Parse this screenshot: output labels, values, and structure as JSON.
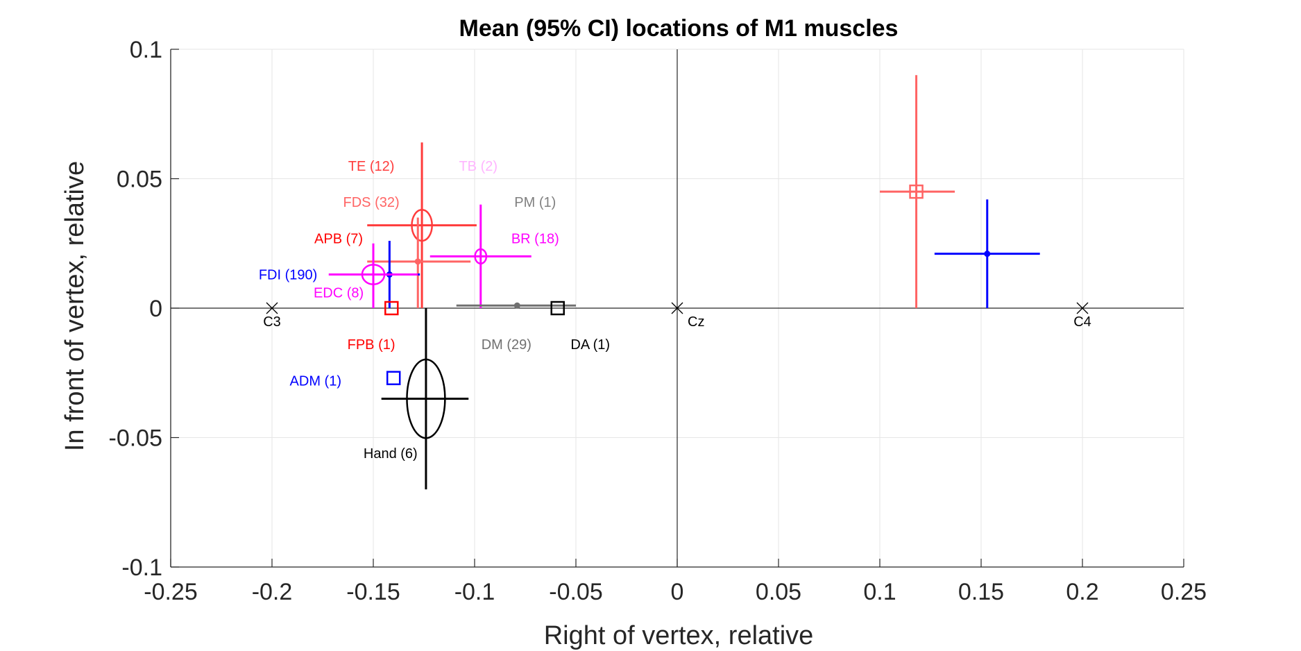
{
  "chart_data": {
    "type": "scatter",
    "title": "Mean (95% CI) locations of M1 muscles",
    "xlabel": "Right of vertex, relative",
    "ylabel": "In front of vertex, relative",
    "xlim": [
      -0.25,
      0.25
    ],
    "ylim": [
      -0.1,
      0.1
    ],
    "x_ticks": [
      "-0.25",
      "-0.2",
      "-0.15",
      "-0.1",
      "-0.05",
      "0",
      "0.05",
      "0.1",
      "0.15",
      "0.2",
      "0.25"
    ],
    "y_ticks": [
      "0.1",
      "0.05",
      "0",
      "-0.05",
      "-0.1"
    ],
    "x_tick_values": [
      -0.25,
      -0.2,
      -0.15,
      -0.1,
      -0.05,
      0,
      0.05,
      0.1,
      0.15,
      0.2,
      0.25
    ],
    "y_tick_values": [
      0.1,
      0.05,
      0,
      -0.05,
      -0.1
    ],
    "grid": true,
    "reference_points": [
      {
        "label": "C3",
        "x": -0.2,
        "y": 0
      },
      {
        "label": "Cz",
        "x": 0,
        "y": 0
      },
      {
        "label": "C4",
        "x": 0.2,
        "y": 0
      }
    ],
    "series": [
      {
        "name": "TE (12)",
        "color": "#ff3c3c",
        "x": -0.126,
        "y": 0.032,
        "x_ci": [
          -0.153,
          -0.099
        ],
        "y_ci": [
          0.0,
          0.064
        ],
        "marker": "ellipse",
        "marker_rx": 0.005,
        "marker_ry": 0.006,
        "label_x": -0.151,
        "label_y": 0.055
      },
      {
        "name": "TB (2)",
        "color": "#ffb4ff",
        "label_x": -0.0982,
        "label_y": 0.055
      },
      {
        "name": "FDS (32)",
        "color": "#ff6464",
        "x": -0.128,
        "y": 0.018,
        "x_ci": [
          -0.153,
          -0.102
        ],
        "y_ci": [
          0.0,
          0.035
        ],
        "marker": "dot",
        "label_x": -0.151,
        "label_y": 0.041
      },
      {
        "name": "PM (1)",
        "color": "#808080",
        "label_x": -0.0701,
        "label_y": 0.041
      },
      {
        "name": "APB (7)",
        "color": "#ff0000",
        "label_x": -0.1671,
        "label_y": 0.027
      },
      {
        "name": "BR (18)",
        "color": "#ff00ff",
        "x": -0.097,
        "y": 0.02,
        "x_ci": [
          -0.122,
          -0.072
        ],
        "y_ci": [
          0.0,
          0.04
        ],
        "marker": "ring",
        "marker_rx": 0.0028,
        "marker_ry": 0.0028,
        "label_x": -0.0701,
        "label_y": 0.027
      },
      {
        "name": "FDI (190)",
        "color": "#0000ff",
        "x": -0.142,
        "y": 0.013,
        "x_ci": [
          -0.158,
          -0.127
        ],
        "y_ci": [
          0.0,
          0.026
        ],
        "marker": "dot",
        "label_x": -0.1921,
        "label_y": 0.013
      },
      {
        "name": "EDC (8)",
        "color": "#ff00ff",
        "x": -0.15,
        "y": 0.013,
        "x_ci": [
          -0.172,
          -0.128
        ],
        "y_ci": [
          0.0,
          0.025
        ],
        "marker": "ellipse",
        "marker_rx": 0.0055,
        "marker_ry": 0.0038,
        "label_x": -0.1671,
        "label_y": 0.006
      },
      {
        "name": "FPB (1)",
        "color": "#ff0000",
        "x": -0.141,
        "y": 0.0,
        "marker": "square",
        "label_x": -0.151,
        "label_y": -0.014
      },
      {
        "name": "DM (29)",
        "color": "#707070",
        "x": -0.079,
        "y": 0.001,
        "x_ci": [
          -0.109,
          -0.05
        ],
        "y_ci": [
          0.0,
          0.002
        ],
        "marker": "dot",
        "label_x": -0.0843,
        "label_y": -0.014
      },
      {
        "name": "DA (1)",
        "color": "#000000",
        "x": -0.059,
        "y": 0.0,
        "marker": "square",
        "label_x": -0.0429,
        "label_y": -0.014
      },
      {
        "name": "ADM (1)",
        "color": "#0000ff",
        "x": -0.14,
        "y": -0.027,
        "marker": "square",
        "label_x": -0.1785,
        "label_y": -0.028
      },
      {
        "name": "Hand (6)",
        "color": "#000000",
        "x": -0.124,
        "y": -0.035,
        "x_ci": [
          -0.146,
          -0.103
        ],
        "y_ci": [
          -0.07,
          0.0
        ],
        "marker": "ellipse",
        "marker_rx": 0.0094,
        "marker_ry": 0.0152,
        "label_x": -0.1415,
        "label_y": -0.056
      },
      {
        "color": "#ff6464",
        "x": 0.118,
        "y": 0.045,
        "x_ci": [
          0.1,
          0.137
        ],
        "y_ci": [
          0.0,
          0.09
        ],
        "marker": "square"
      },
      {
        "color": "#0000ff",
        "x": 0.153,
        "y": 0.021,
        "x_ci": [
          0.127,
          0.179
        ],
        "y_ci": [
          0.0,
          0.042
        ],
        "marker": "dot"
      }
    ]
  }
}
